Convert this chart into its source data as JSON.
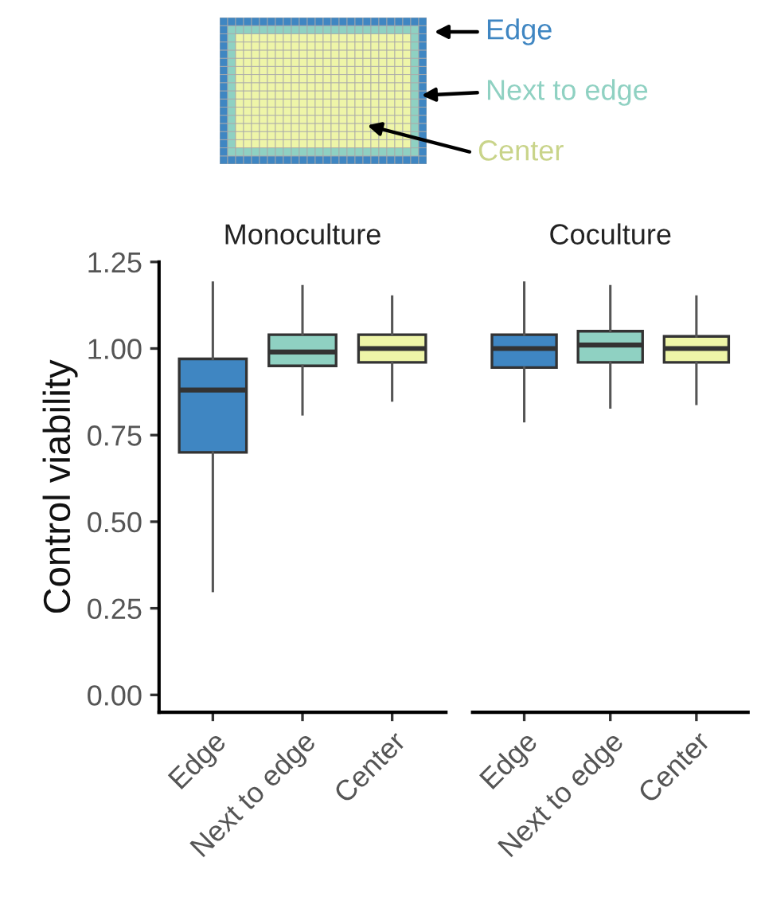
{
  "chart_data": [
    {
      "type": "box",
      "title": "Monoculture",
      "ylabel": "Control viability",
      "categories": [
        "Edge",
        "Next to edge",
        "Center"
      ],
      "colors": [
        "#3f86c2",
        "#8fd1c2",
        "#eef5a8"
      ],
      "boxes": [
        {
          "low": 0.3,
          "q1": 0.7,
          "median": 0.88,
          "q3": 0.97,
          "high": 1.19
        },
        {
          "low": 0.81,
          "q1": 0.95,
          "median": 0.99,
          "q3": 1.04,
          "high": 1.18
        },
        {
          "low": 0.85,
          "q1": 0.96,
          "median": 1.0,
          "q3": 1.04,
          "high": 1.15
        }
      ],
      "ylim": [
        -0.05,
        1.25
      ],
      "yticks": [
        {
          "value": 0,
          "label": "0.00"
        },
        {
          "value": 0.25,
          "label": "0.25"
        },
        {
          "value": 0.5,
          "label": "0.50"
        },
        {
          "value": 0.75,
          "label": "0.75"
        },
        {
          "value": 1,
          "label": "1.00"
        },
        {
          "value": 1.25,
          "label": "1.25"
        }
      ],
      "grid": false,
      "legend": false,
      "annotations": [
        "Edge",
        "Next to edge",
        "Center"
      ]
    },
    {
      "type": "box",
      "title": "Coculture",
      "categories": [
        "Edge",
        "Next to edge",
        "Center"
      ],
      "colors": [
        "#3f86c2",
        "#8fd1c2",
        "#eef5a8"
      ],
      "boxes": [
        {
          "low": 0.79,
          "q1": 0.945,
          "median": 1.0,
          "q3": 1.04,
          "high": 1.19
        },
        {
          "low": 0.83,
          "q1": 0.96,
          "median": 1.01,
          "q3": 1.05,
          "high": 1.18
        },
        {
          "low": 0.84,
          "q1": 0.96,
          "median": 1.0,
          "q3": 1.035,
          "high": 1.15
        }
      ],
      "ylim": [
        -0.05,
        1.25
      ],
      "tick_labels": "x",
      "grid": false,
      "legend": false
    }
  ]
}
